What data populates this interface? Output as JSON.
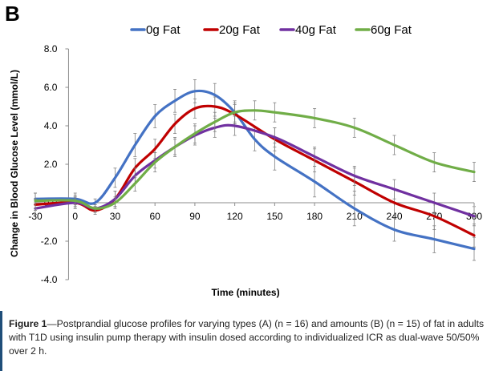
{
  "panel_label": "B",
  "caption": {
    "bold": "Figure 1",
    "text": "—Postprandial glucose profiles for varying types (A) (n = 16) and amounts (B) (n = 15) of fat in adults with T1D using insulin pump therapy with insulin dosed according to individualized ICR as dual-wave 50/50% over 2 h."
  },
  "chart_data": {
    "type": "line",
    "xlabel": "Time (minutes)",
    "ylabel": "Change in Blood Glucose Level (mmol/L)",
    "xlim": [
      -30,
      300
    ],
    "ylim": [
      -4,
      8
    ],
    "x_ticks": [
      -30,
      0,
      30,
      60,
      90,
      120,
      150,
      180,
      210,
      240,
      270,
      300
    ],
    "y_ticks": [
      8,
      6,
      4,
      2,
      0,
      -2,
      -4
    ],
    "y_tick_labels": [
      "8.0",
      "6.0",
      "4.0",
      "2.0",
      "0.0",
      "-2.0",
      "-4.0"
    ],
    "legend_position": "top",
    "error_bars": true,
    "series": [
      {
        "name": "0g Fat",
        "color": "#4472c4",
        "x": [
          -30,
          0,
          15,
          30,
          45,
          60,
          75,
          90,
          105,
          120,
          135,
          150,
          180,
          210,
          240,
          270,
          300
        ],
        "y": [
          0.2,
          0.2,
          0.0,
          1.3,
          3.0,
          4.5,
          5.3,
          5.8,
          5.6,
          4.7,
          3.3,
          2.4,
          1.1,
          -0.3,
          -1.4,
          -1.9,
          -2.4
        ],
        "err": [
          0.3,
          0.3,
          0.2,
          0.5,
          0.6,
          0.6,
          0.6,
          0.6,
          0.6,
          0.6,
          0.6,
          0.7,
          0.8,
          0.9,
          0.6,
          0.7,
          0.6
        ]
      },
      {
        "name": "20g Fat",
        "color": "#c00000",
        "x": [
          -30,
          0,
          15,
          30,
          45,
          60,
          75,
          90,
          105,
          120,
          150,
          180,
          210,
          240,
          270,
          300
        ],
        "y": [
          -0.1,
          0.0,
          -0.4,
          0.2,
          1.8,
          2.8,
          4.1,
          4.9,
          5.0,
          4.6,
          3.3,
          2.2,
          1.1,
          0.0,
          -0.7,
          -1.7
        ],
        "err": [
          0.3,
          0.3,
          0.2,
          0.4,
          0.5,
          0.5,
          0.5,
          0.5,
          0.5,
          0.5,
          0.6,
          0.6,
          0.7,
          0.7,
          0.7,
          0.6
        ]
      },
      {
        "name": "40g Fat",
        "color": "#7030a0",
        "x": [
          -30,
          0,
          15,
          30,
          45,
          60,
          75,
          90,
          105,
          120,
          150,
          180,
          210,
          240,
          270,
          300
        ],
        "y": [
          -0.3,
          0.0,
          -0.3,
          0.2,
          1.4,
          2.2,
          2.9,
          3.5,
          3.9,
          4.0,
          3.4,
          2.4,
          1.4,
          0.7,
          0.0,
          -0.7
        ],
        "err": [
          0.3,
          0.3,
          0.2,
          0.4,
          0.4,
          0.4,
          0.4,
          0.5,
          0.5,
          0.5,
          0.5,
          0.5,
          0.5,
          0.5,
          0.5,
          0.5
        ]
      },
      {
        "name": "60g Fat",
        "color": "#70ad47",
        "x": [
          -30,
          0,
          15,
          30,
          45,
          60,
          75,
          90,
          105,
          120,
          135,
          150,
          180,
          210,
          240,
          270,
          300
        ],
        "y": [
          0.1,
          0.1,
          -0.3,
          0.0,
          1.0,
          2.1,
          2.9,
          3.6,
          4.2,
          4.7,
          4.8,
          4.7,
          4.4,
          3.9,
          3.0,
          2.1,
          1.6
        ],
        "err": [
          0.4,
          0.3,
          0.2,
          0.3,
          0.4,
          0.5,
          0.5,
          0.5,
          0.5,
          0.5,
          0.5,
          0.5,
          0.5,
          0.5,
          0.5,
          0.5,
          0.5
        ]
      }
    ]
  }
}
